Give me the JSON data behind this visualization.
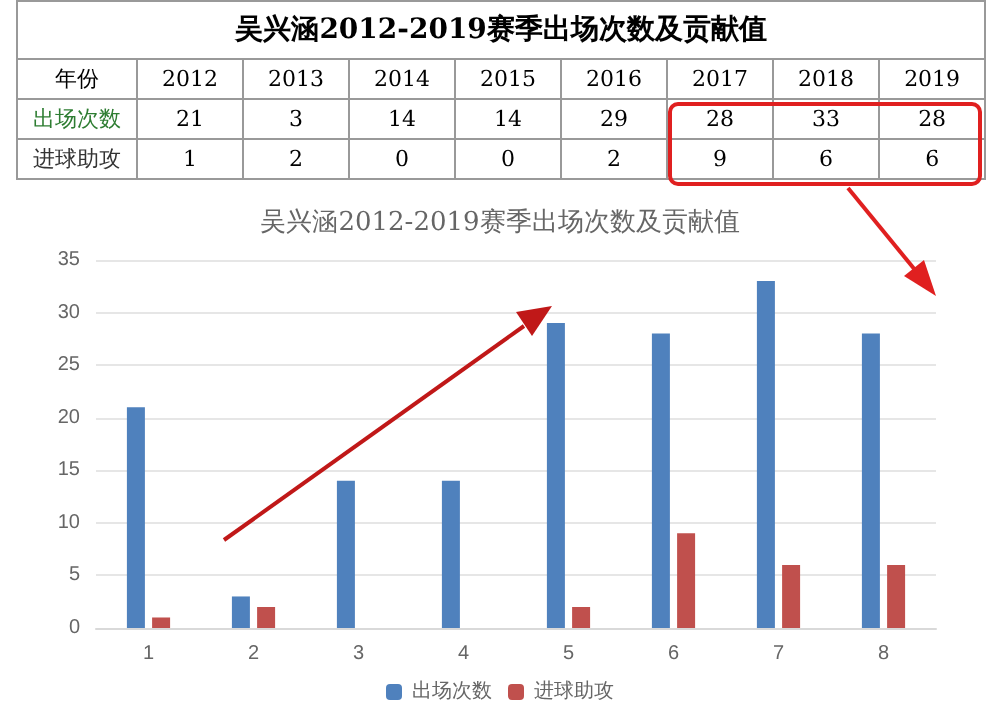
{
  "chart_data": {
    "type": "bar",
    "title": "吴兴涵2012-2019赛季出场次数及贡献值",
    "subtitle": "吴兴涵2012-2019赛季出场次数及贡献值",
    "categories": [
      "1",
      "2",
      "3",
      "4",
      "5",
      "6",
      "7",
      "8"
    ],
    "series": [
      {
        "name": "出场次数",
        "color": "#4f81bd",
        "values": [
          21,
          3,
          14,
          14,
          29,
          28,
          33,
          28
        ]
      },
      {
        "name": "进球助攻",
        "color": "#c0504d",
        "values": [
          1,
          2,
          0,
          0,
          2,
          9,
          6,
          6
        ]
      }
    ],
    "annotations": [
      "年份",
      "2012",
      "2013",
      "2014",
      "2015",
      "2016",
      "2017",
      "2018",
      "2019"
    ],
    "ylim": [
      0,
      35
    ],
    "yticks": [
      0,
      5,
      10,
      15,
      20,
      25,
      30,
      35
    ],
    "grid": "y",
    "legend": "bottom",
    "data_labels": true
  }
}
